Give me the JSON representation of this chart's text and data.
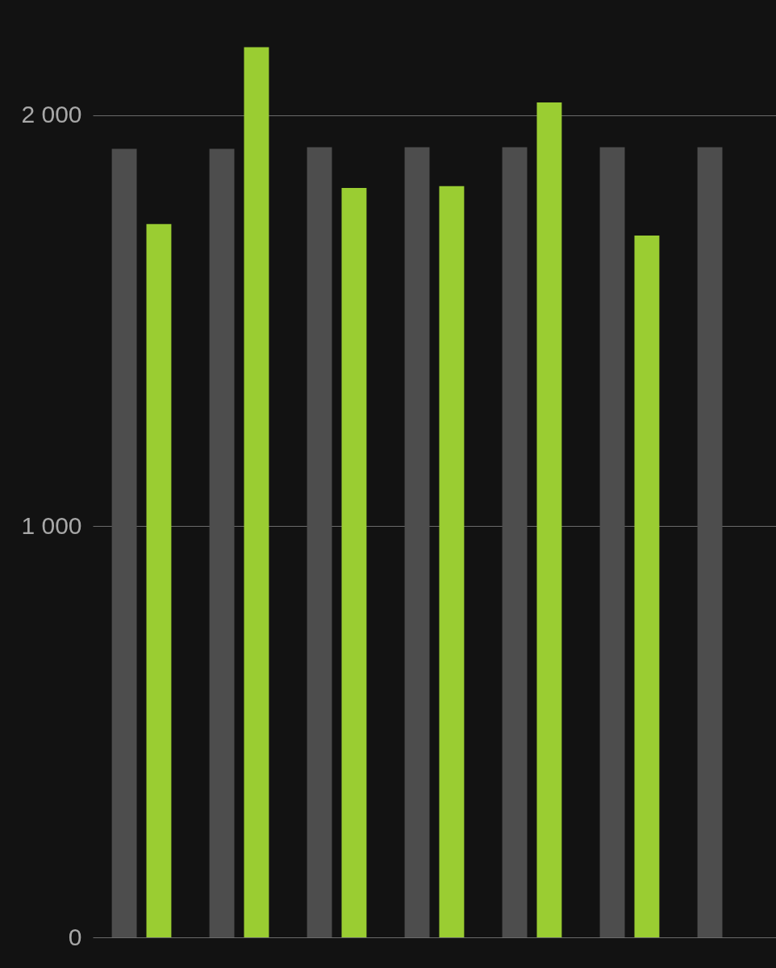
{
  "chart_data": {
    "type": "bar",
    "categories": [
      null,
      null,
      null,
      null,
      null,
      null,
      null
    ],
    "series": [
      {
        "color": "#4d4d4d",
        "values": [
          1918,
          1918,
          1922,
          1922,
          1922,
          1922,
          1922
        ]
      },
      {
        "color": "#9acd32",
        "values": [
          1735,
          2165,
          1823,
          1827,
          2031,
          1707,
          null
        ]
      }
    ],
    "ylim": [
      0,
      2280
    ],
    "yticks": [
      0,
      {
        "value": 1000,
        "label": "1 000"
      },
      {
        "value": 2000,
        "label": "2 000"
      }
    ],
    "grid": "y",
    "tick_labels": "y"
  }
}
